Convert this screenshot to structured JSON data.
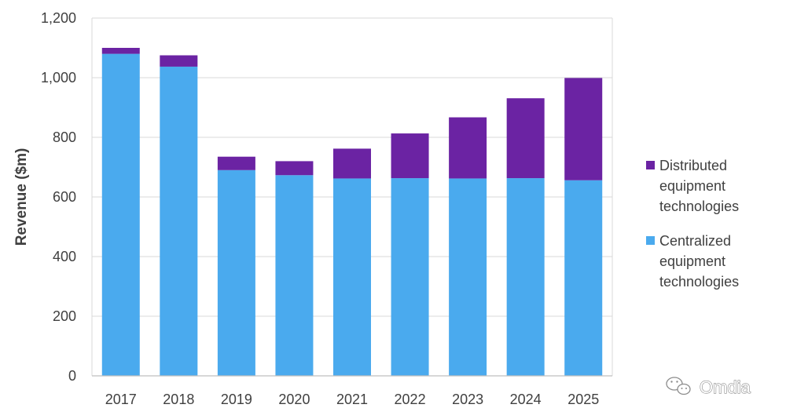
{
  "chart_data": {
    "type": "bar",
    "stacked": true,
    "title": "",
    "xlabel": "",
    "ylabel": "Revenue ($m)",
    "categories": [
      "2017",
      "2018",
      "2019",
      "2020",
      "2021",
      "2022",
      "2023",
      "2024",
      "2025"
    ],
    "series": [
      {
        "name": "Centralized equipment technologies",
        "color": "#4aaaee",
        "values": [
          1080,
          1037,
          690,
          673,
          662,
          663,
          662,
          663,
          656
        ]
      },
      {
        "name": "Distributed equipment technologies",
        "color": "#6b23a3",
        "values": [
          20,
          38,
          45,
          47,
          100,
          150,
          205,
          268,
          343
        ]
      }
    ],
    "ylim": [
      0,
      1200
    ],
    "yticks": [
      0,
      200,
      400,
      600,
      800,
      1000,
      1200
    ],
    "ytick_labels": [
      "0",
      "200",
      "400",
      "600",
      "800",
      "1,000",
      "1,200"
    ],
    "grid": true,
    "legend": {
      "placement": "right",
      "entries": [
        {
          "lines": [
            "Distributed",
            "equipment",
            "technologies"
          ],
          "series": 1
        },
        {
          "lines": [
            "Centralized",
            "equipment",
            "technologies"
          ],
          "series": 0
        }
      ]
    },
    "watermark": "Omdia"
  }
}
